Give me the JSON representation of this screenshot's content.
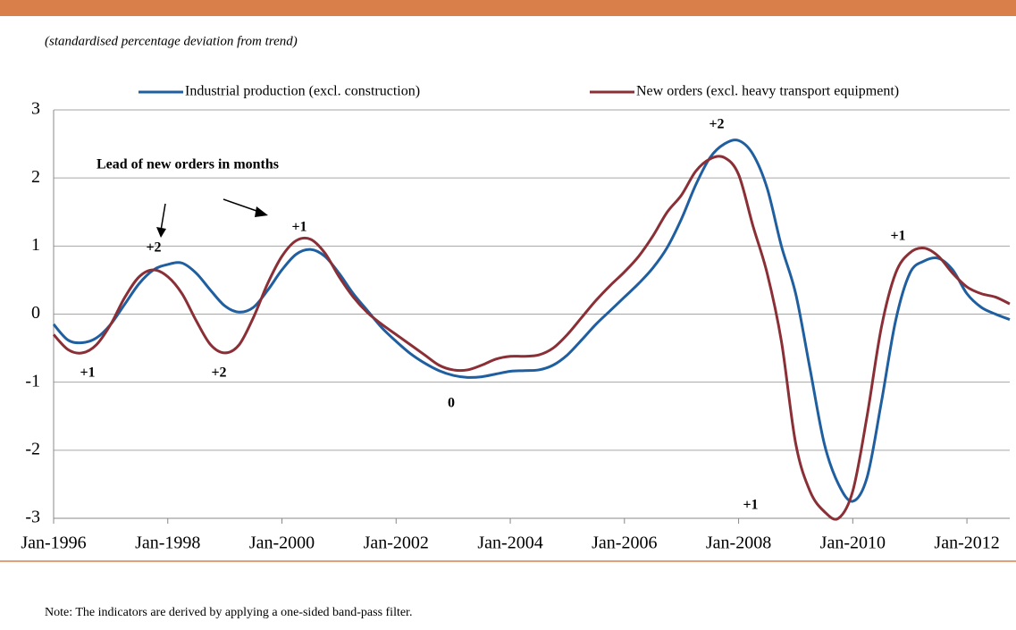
{
  "chart_data": {
    "type": "line",
    "subtitle": "(standardised percentage deviation from trend)",
    "note": "Note: The indicators are derived by applying a one-sided band-pass filter.",
    "x": [
      "1996-01",
      "1996-04",
      "1996-07",
      "1996-10",
      "1997-01",
      "1997-04",
      "1997-07",
      "1997-10",
      "1998-01",
      "1998-04",
      "1998-07",
      "1998-10",
      "1999-01",
      "1999-04",
      "1999-07",
      "1999-10",
      "2000-01",
      "2000-04",
      "2000-07",
      "2000-10",
      "2001-01",
      "2001-04",
      "2001-07",
      "2001-10",
      "2002-01",
      "2002-04",
      "2002-07",
      "2002-10",
      "2003-01",
      "2003-04",
      "2003-07",
      "2003-10",
      "2004-01",
      "2004-04",
      "2004-07",
      "2004-10",
      "2005-01",
      "2005-04",
      "2005-07",
      "2005-10",
      "2006-01",
      "2006-04",
      "2006-07",
      "2006-10",
      "2007-01",
      "2007-04",
      "2007-07",
      "2007-10",
      "2008-01",
      "2008-04",
      "2008-07",
      "2008-10",
      "2009-01",
      "2009-04",
      "2009-07",
      "2009-10",
      "2010-01",
      "2010-04",
      "2010-07",
      "2010-10",
      "2011-01",
      "2011-04",
      "2011-07",
      "2011-10",
      "2012-01",
      "2012-04",
      "2012-07",
      "2012-10"
    ],
    "series": [
      {
        "name": "Industrial production (excl. construction)",
        "color": "#1f5fa0",
        "values": [
          -0.15,
          -0.38,
          -0.42,
          -0.35,
          -0.15,
          0.15,
          0.45,
          0.65,
          0.73,
          0.75,
          0.6,
          0.35,
          0.12,
          0.03,
          0.1,
          0.35,
          0.65,
          0.88,
          0.95,
          0.85,
          0.6,
          0.3,
          0.05,
          -0.2,
          -0.4,
          -0.58,
          -0.72,
          -0.83,
          -0.9,
          -0.93,
          -0.92,
          -0.88,
          -0.84,
          -0.83,
          -0.82,
          -0.75,
          -0.6,
          -0.38,
          -0.15,
          0.05,
          0.25,
          0.45,
          0.68,
          0.98,
          1.4,
          1.9,
          2.3,
          2.5,
          2.55,
          2.35,
          1.85,
          1.0,
          0.3,
          -0.8,
          -1.9,
          -2.5,
          -2.75,
          -2.4,
          -1.3,
          -0.1,
          0.6,
          0.78,
          0.82,
          0.65,
          0.3,
          0.1,
          0.0,
          -0.08
        ]
      },
      {
        "name": "New orders (excl. heavy transport equipment)",
        "color": "#8b2f36",
        "values": [
          -0.3,
          -0.52,
          -0.57,
          -0.45,
          -0.15,
          0.25,
          0.55,
          0.65,
          0.55,
          0.3,
          -0.1,
          -0.45,
          -0.57,
          -0.45,
          -0.05,
          0.45,
          0.85,
          1.08,
          1.1,
          0.9,
          0.55,
          0.25,
          0.02,
          -0.15,
          -0.3,
          -0.45,
          -0.6,
          -0.75,
          -0.82,
          -0.82,
          -0.75,
          -0.66,
          -0.62,
          -0.62,
          -0.6,
          -0.5,
          -0.3,
          -0.05,
          0.2,
          0.42,
          0.62,
          0.85,
          1.15,
          1.5,
          1.75,
          2.1,
          2.28,
          2.3,
          2.05,
          1.3,
          0.6,
          -0.4,
          -1.9,
          -2.6,
          -2.9,
          -3.0,
          -2.6,
          -1.5,
          -0.2,
          0.6,
          0.9,
          0.97,
          0.85,
          0.6,
          0.4,
          0.3,
          0.25,
          0.15
        ]
      }
    ],
    "xlim": [
      "1996-01",
      "2012-10"
    ],
    "xticks": [
      {
        "value": "1996-01",
        "label": "Jan-1996"
      },
      {
        "value": "1998-01",
        "label": "Jan-1998"
      },
      {
        "value": "2000-01",
        "label": "Jan-2000"
      },
      {
        "value": "2002-01",
        "label": "Jan-2002"
      },
      {
        "value": "2004-01",
        "label": "Jan-2004"
      },
      {
        "value": "2006-01",
        "label": "Jan-2006"
      },
      {
        "value": "2008-01",
        "label": "Jan-2008"
      },
      {
        "value": "2010-01",
        "label": "Jan-2010"
      },
      {
        "value": "2012-01",
        "label": "Jan-2012"
      }
    ],
    "ylim": [
      -3,
      3
    ],
    "yticks": [
      -3,
      -2,
      -1,
      0,
      1,
      2,
      3
    ],
    "grid": true,
    "legend": "top",
    "annotations": [
      "Lead of new orders in months",
      "+2",
      "+1",
      "+2",
      "+1",
      "+1",
      "+2",
      "0",
      "+1"
    ]
  }
}
